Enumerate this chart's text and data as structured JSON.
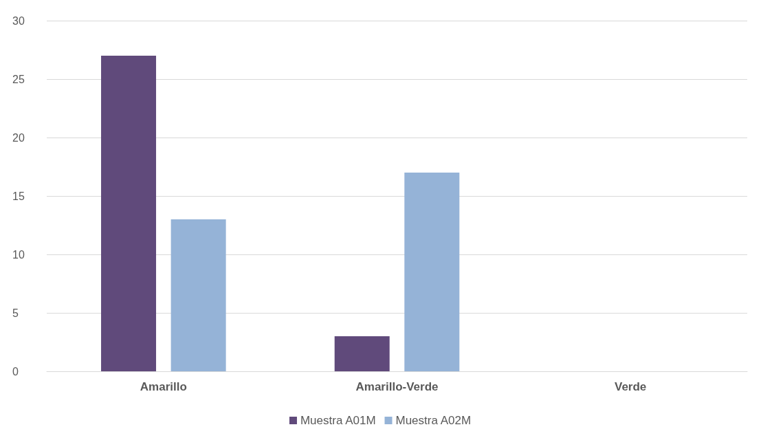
{
  "chart_data": {
    "type": "bar",
    "categories": [
      "Amarillo",
      "Amarillo-Verde",
      "Verde"
    ],
    "series": [
      {
        "name": "Muestra A01M",
        "color": "#604a7b",
        "values": [
          27,
          3,
          0
        ]
      },
      {
        "name": "Muestra A02M",
        "color": "#95b3d7",
        "values": [
          13,
          17,
          0
        ]
      }
    ],
    "ylim": [
      0,
      30
    ],
    "yticks": [
      0,
      5,
      10,
      15,
      20,
      25,
      30
    ],
    "grid": "y",
    "legend": "bottom"
  }
}
